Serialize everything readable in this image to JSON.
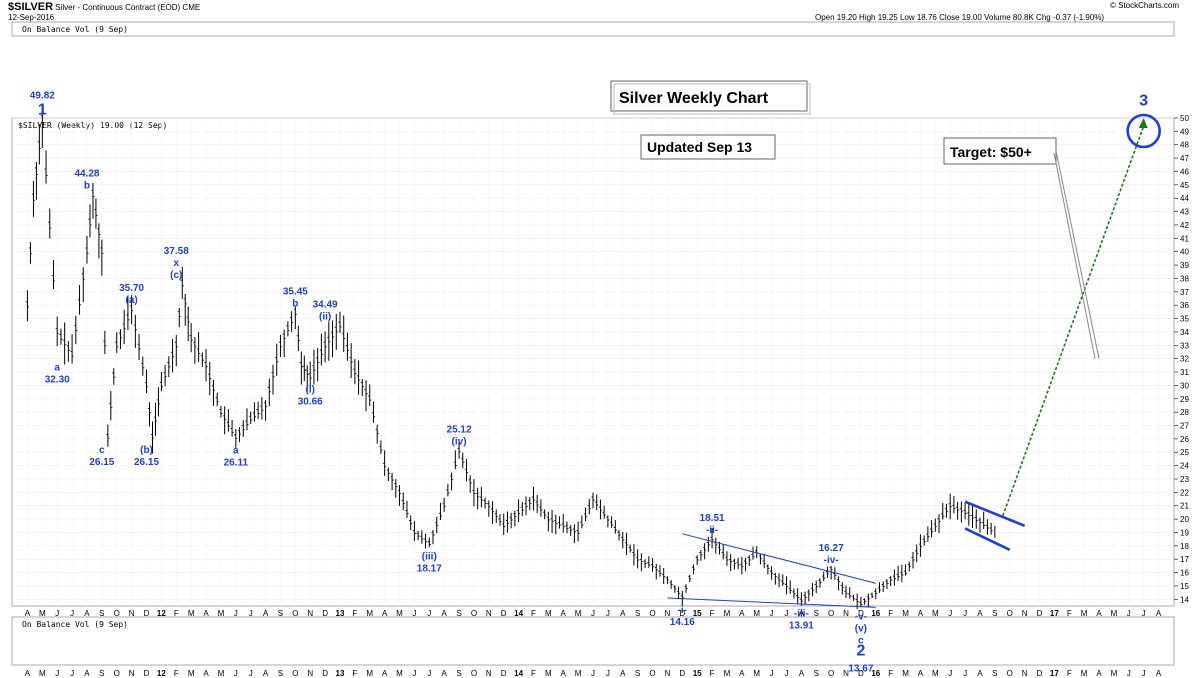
{
  "header": {
    "symbol": "$SILVER",
    "subtitle": "Silver - Continuous Contract (EOD) CME",
    "date": "12-Sep-2016",
    "quote": "Open 19.20  High 19.25  Low 18.76  Close 19.00  Volume 80.8K  Chg -0.37 (-1.90%)",
    "watermark": "© StockCharts.com"
  },
  "panels": {
    "top_label": "On Balance Vol (9 Sep)",
    "main_label": "$SILVER (Weekly) 19.00 (12 Sep)",
    "bottom_label": "On Balance Vol (9 Sep)"
  },
  "boxes": {
    "title": "Silver Weekly Chart",
    "updated": "Updated Sep 13",
    "target": "Target: $50+"
  },
  "colors": {
    "accent": "#1f3fcf",
    "bars": "#000000",
    "projection": "#1a7a1a"
  },
  "chart_data": {
    "type": "line",
    "scale": "linear",
    "x_range": [
      "2011-04",
      "2017-08"
    ],
    "ylim": [
      13.5,
      50
    ],
    "y_ticks": [
      14,
      15,
      16,
      17,
      18,
      19,
      20,
      21,
      22,
      23,
      24,
      25,
      26,
      27,
      28,
      29,
      30,
      31,
      32,
      33,
      34,
      35,
      36,
      37,
      38,
      39,
      40,
      41,
      42,
      43,
      44,
      45,
      46,
      47,
      48,
      49,
      50
    ],
    "month_ticks": [
      "A",
      "M",
      "J",
      "J",
      "A",
      "S",
      "O",
      "N",
      "D",
      "12",
      "F",
      "M",
      "A",
      "M",
      "J",
      "J",
      "A",
      "S",
      "O",
      "N",
      "D",
      "13",
      "F",
      "M",
      "A",
      "M",
      "J",
      "J",
      "A",
      "S",
      "O",
      "N",
      "D",
      "14",
      "F",
      "M",
      "A",
      "M",
      "J",
      "J",
      "A",
      "S",
      "O",
      "N",
      "D",
      "15",
      "F",
      "M",
      "A",
      "M",
      "J",
      "J",
      "A",
      "S",
      "O",
      "N",
      "D",
      "16",
      "F",
      "M",
      "A",
      "M",
      "J",
      "J",
      "A",
      "S",
      "O",
      "N",
      "D",
      "17",
      "F",
      "M",
      "A",
      "M",
      "J",
      "J",
      "A"
    ],
    "series": [
      {
        "x": [
          "2011-04",
          "2011-04",
          "2011-05",
          "2011-06",
          "2011-07",
          "2011-08",
          "2011-08",
          "2011-09",
          "2011-09",
          "2011-10",
          "2011-11",
          "2011-12",
          "2011-12",
          "2012-01",
          "2012-02",
          "2012-02",
          "2012-03",
          "2012-04",
          "2012-05",
          "2012-06",
          "2012-07",
          "2012-08",
          "2012-09",
          "2012-10",
          "2012-10",
          "2012-11",
          "2012-12",
          "2013-01",
          "2013-02",
          "2013-03",
          "2013-04",
          "2013-05",
          "2013-06",
          "2013-07",
          "2013-08",
          "2013-09",
          "2013-10",
          "2013-11",
          "2013-12",
          "2014-01",
          "2014-02",
          "2014-03",
          "2014-04",
          "2014-05",
          "2014-06",
          "2014-07",
          "2014-08",
          "2014-09",
          "2014-10",
          "2014-11",
          "2014-12",
          "2015-01",
          "2015-02",
          "2015-03",
          "2015-04",
          "2015-05",
          "2015-06",
          "2015-07",
          "2015-08",
          "2015-09",
          "2015-10",
          "2015-11",
          "2015-12",
          "2016-01",
          "2016-02",
          "2016-03",
          "2016-04",
          "2016-05",
          "2016-06",
          "2016-07",
          "2016-08",
          "2016-09"
        ],
        "values": [
          36.0,
          44.0,
          49.82,
          34.0,
          32.3,
          40.0,
          44.28,
          40.0,
          26.15,
          33.0,
          35.7,
          30.0,
          26.15,
          30.0,
          33.0,
          37.58,
          33.5,
          31.5,
          28.0,
          26.11,
          27.5,
          28.5,
          33.0,
          35.45,
          31.5,
          30.66,
          33.0,
          34.49,
          31.0,
          29.0,
          24.0,
          22.0,
          19.0,
          18.17,
          21.0,
          25.12,
          22.0,
          21.0,
          19.5,
          20.5,
          21.5,
          20.0,
          19.5,
          19.0,
          21.5,
          20.0,
          18.5,
          17.0,
          16.5,
          15.5,
          14.16,
          17.0,
          18.51,
          17.0,
          16.5,
          17.5,
          16.0,
          15.0,
          13.91,
          15.0,
          16.27,
          14.5,
          13.67,
          14.5,
          15.5,
          16.0,
          18.0,
          19.5,
          21.0,
          20.5,
          19.8,
          19.0
        ]
      }
    ],
    "projection": {
      "from": [
        "2016-09",
        19.8
      ],
      "to": [
        "2017-07",
        50.0
      ]
    },
    "target_arrow": {
      "from": [
        "2016-12",
        48.0
      ],
      "to": [
        "2017-04",
        32.0
      ]
    },
    "labels": [
      {
        "x": "2011-05",
        "y": 49.82,
        "value": "49.82",
        "wave": "1",
        "side": "above"
      },
      {
        "x": "2011-06",
        "y": 32.3,
        "value": "32.30",
        "wave": "a",
        "side": "below"
      },
      {
        "x": "2011-08",
        "y": 44.28,
        "value": "44.28",
        "wave": "b",
        "side": "above"
      },
      {
        "x": "2011-09",
        "y": 26.15,
        "value": "26.15",
        "wave": "c",
        "side": "below"
      },
      {
        "x": "2011-11",
        "y": 35.7,
        "value": "35.70",
        "wave": "(a)",
        "side": "above"
      },
      {
        "x": "2011-12",
        "y": 26.15,
        "value": "26.15",
        "wave": "(b)",
        "side": "below"
      },
      {
        "x": "2012-02",
        "y": 37.58,
        "value": "37.58",
        "wave": "x\n(c)",
        "side": "above"
      },
      {
        "x": "2012-06",
        "y": 26.11,
        "value": "26.11",
        "wave": "a",
        "side": "below"
      },
      {
        "x": "2012-10",
        "y": 35.45,
        "value": "35.45",
        "wave": "b",
        "side": "above"
      },
      {
        "x": "2012-11",
        "y": 30.66,
        "value": "30.66",
        "wave": "(i)",
        "side": "below"
      },
      {
        "x": "2012-12",
        "y": 34.49,
        "value": "34.49",
        "wave": "(ii)",
        "side": "above"
      },
      {
        "x": "2013-07",
        "y": 18.17,
        "value": "18.17",
        "wave": "(iii)",
        "side": "below"
      },
      {
        "x": "2013-09",
        "y": 25.12,
        "value": "25.12",
        "wave": "(iv)",
        "side": "above"
      },
      {
        "x": "2014-12",
        "y": 14.16,
        "value": "14.16",
        "wave": "-i-",
        "side": "below"
      },
      {
        "x": "2015-02",
        "y": 18.51,
        "value": "18.51",
        "wave": "-ii-",
        "side": "above"
      },
      {
        "x": "2015-08",
        "y": 13.91,
        "value": "13.91",
        "wave": "-iii-",
        "side": "below"
      },
      {
        "x": "2015-10",
        "y": 16.27,
        "value": "16.27",
        "wave": "-iv-",
        "side": "above"
      },
      {
        "x": "2015-12",
        "y": 13.67,
        "value": "13.67",
        "wave": "-v-\n(v)\nc\n2",
        "side": "below"
      },
      {
        "x": "2017-07",
        "y": 50.5,
        "value": "",
        "wave": "3",
        "side": "above"
      }
    ]
  }
}
